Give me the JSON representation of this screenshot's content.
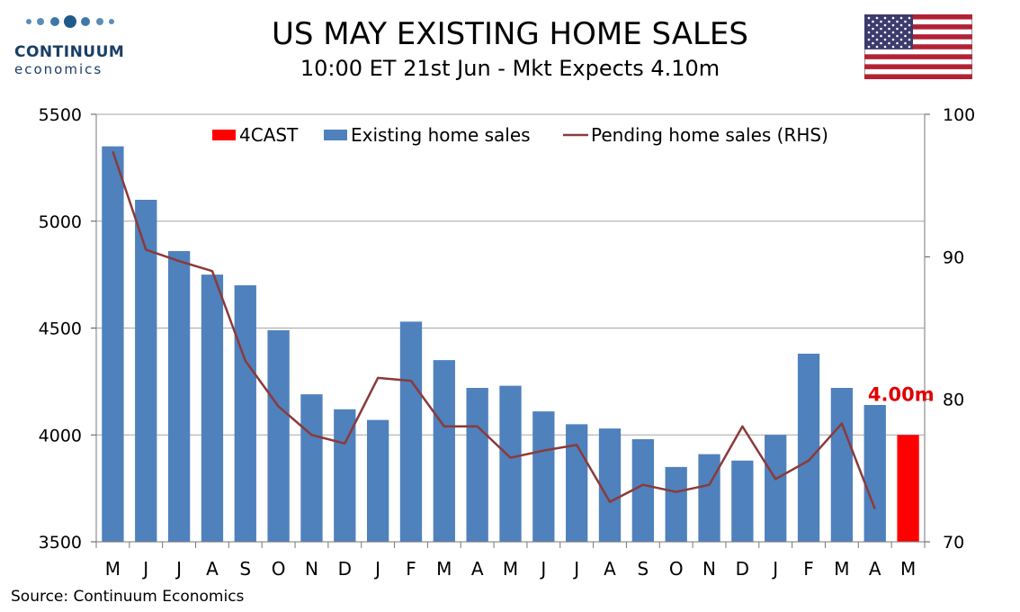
{
  "header": {
    "title": "US MAY EXISTING HOME SALES",
    "subtitle": "10:00 ET 21st Jun - Mkt Expects 4.10m"
  },
  "logo": {
    "name": "CONTINUUM",
    "sub": "economics"
  },
  "source": "Source: Continuum Economics",
  "colors": {
    "bars": "#4f81bd",
    "forecast": "#ff0000",
    "pending_line": "#8b3a3a",
    "forecast_label": "#e00000",
    "grid": "#a6a6a6"
  },
  "flag_icon": "us-flag-icon",
  "chart_data": {
    "type": "bar",
    "categories": [
      "M",
      "J",
      "J",
      "A",
      "S",
      "O",
      "N",
      "D",
      "J",
      "F",
      "M",
      "A",
      "M",
      "J",
      "J",
      "A",
      "S",
      "O",
      "N",
      "D",
      "J",
      "F",
      "M",
      "A",
      "M"
    ],
    "series": [
      {
        "name": "Existing home sales",
        "kind": "bar",
        "axis": "left",
        "values": [
          5350,
          5100,
          4860,
          4750,
          4700,
          4490,
          4190,
          4120,
          4070,
          4530,
          4350,
          4220,
          4230,
          4110,
          4050,
          4030,
          3980,
          3850,
          3910,
          3880,
          4000,
          4380,
          4220,
          4140,
          null
        ]
      },
      {
        "name": "4CAST",
        "kind": "bar",
        "axis": "left",
        "values": [
          null,
          null,
          null,
          null,
          null,
          null,
          null,
          null,
          null,
          null,
          null,
          null,
          null,
          null,
          null,
          null,
          null,
          null,
          null,
          null,
          null,
          null,
          null,
          null,
          4000
        ]
      },
      {
        "name": "Pending home sales (RHS)",
        "kind": "line",
        "axis": "right",
        "values": [
          97.4,
          90.5,
          89.7,
          89.0,
          82.7,
          79.5,
          77.5,
          76.9,
          81.5,
          81.3,
          78.1,
          78.1,
          75.9,
          76.4,
          76.8,
          72.8,
          74.0,
          73.5,
          74.0,
          78.1,
          74.4,
          75.7,
          78.3,
          72.3,
          null
        ]
      }
    ],
    "left_axis": {
      "ylim": [
        3500,
        5500
      ],
      "ticks": [
        3500,
        4000,
        4500,
        5000,
        5500
      ]
    },
    "right_axis": {
      "ylim": [
        70,
        100
      ],
      "ticks": [
        70,
        80,
        90,
        100
      ]
    },
    "legend": [
      "4CAST",
      "Existing home sales",
      "Pending home sales (RHS)"
    ],
    "legend_position": "top",
    "annotation": "4.00m",
    "grid": true
  }
}
